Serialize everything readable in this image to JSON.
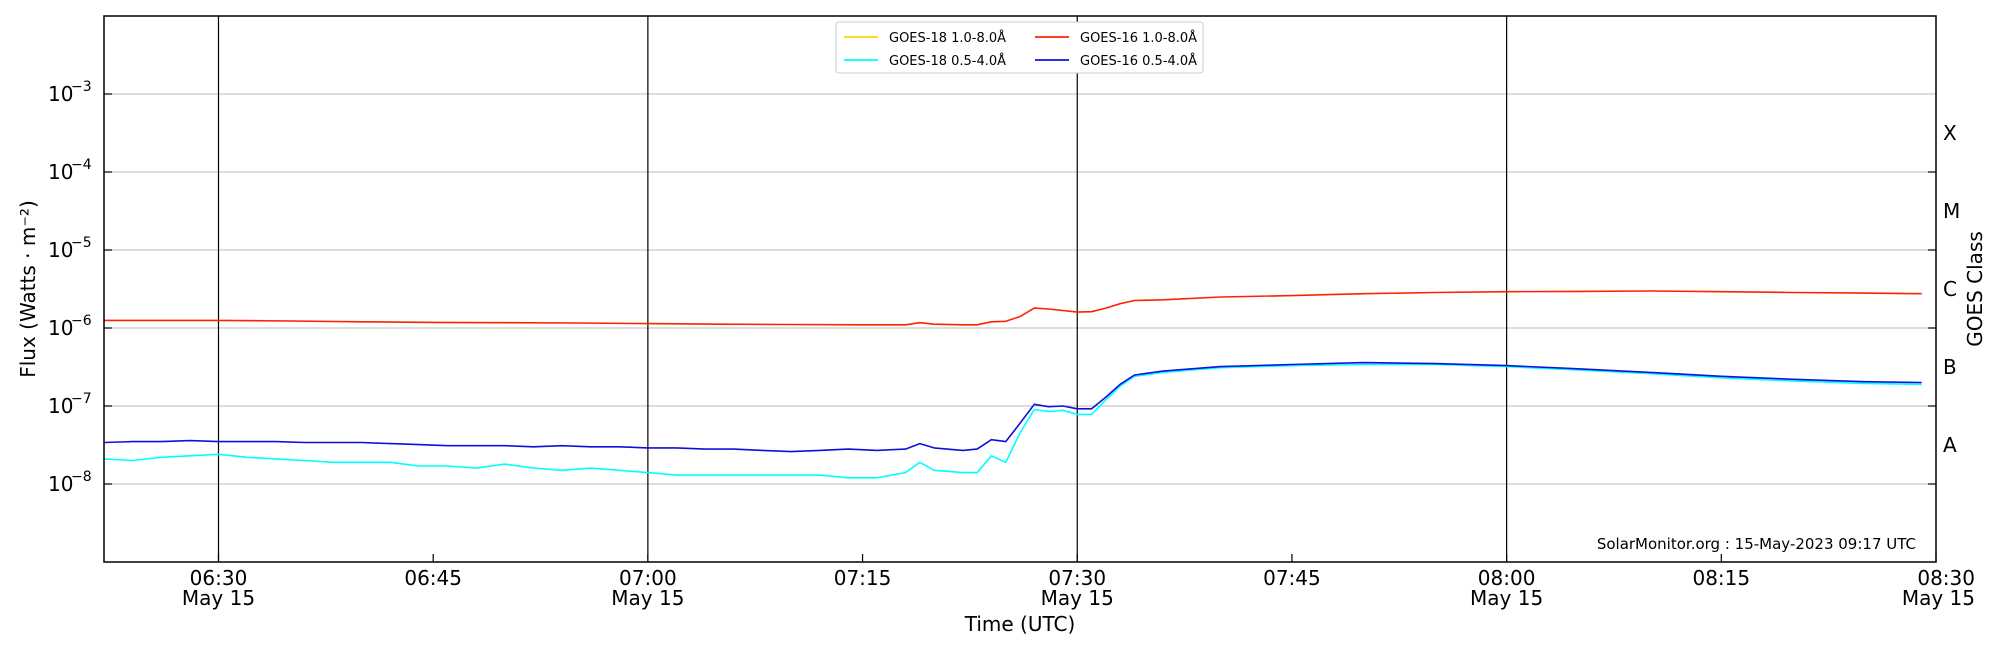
{
  "chart_data": {
    "type": "line",
    "xlabel": "Time (UTC)",
    "ylabel": "Flux (Watts · m⁻²)",
    "right_label": "GOES Class",
    "yscale": "log",
    "ylim": [
      1e-09,
      0.01
    ],
    "xlim": [
      "06:22",
      "08:30"
    ],
    "x_ticks": [
      {
        "t": "06:30",
        "label": "06:30",
        "sub": "May 15"
      },
      {
        "t": "06:45",
        "label": "06:45",
        "sub": ""
      },
      {
        "t": "07:00",
        "label": "07:00",
        "sub": "May 15"
      },
      {
        "t": "07:15",
        "label": "07:15",
        "sub": ""
      },
      {
        "t": "07:30",
        "label": "07:30",
        "sub": "May 15"
      },
      {
        "t": "07:45",
        "label": "07:45",
        "sub": ""
      },
      {
        "t": "08:00",
        "label": "08:00",
        "sub": "May 15"
      },
      {
        "t": "08:15",
        "label": "08:15",
        "sub": ""
      },
      {
        "t": "08:30",
        "label": "08:30",
        "sub": "May 15"
      }
    ],
    "vertical_lines": [
      "06:30",
      "07:00",
      "07:30",
      "08:00"
    ],
    "y_ticks": [
      {
        "value": 1e-08,
        "base": "10",
        "exp": "−8"
      },
      {
        "value": 1e-07,
        "base": "10",
        "exp": "−7"
      },
      {
        "value": 1e-06,
        "base": "10",
        "exp": "−6"
      },
      {
        "value": 1e-05,
        "base": "10",
        "exp": "−5"
      },
      {
        "value": 0.0001,
        "base": "10",
        "exp": "−4"
      },
      {
        "value": 0.001,
        "base": "10",
        "exp": "−3"
      }
    ],
    "grid_y": [
      1e-08,
      1e-07,
      1e-06,
      1e-05,
      0.0001,
      0.001
    ],
    "goes_classes": [
      {
        "label": "A",
        "value": 3.16e-08
      },
      {
        "label": "B",
        "value": 3.16e-07
      },
      {
        "label": "C",
        "value": 3.16e-06
      },
      {
        "label": "M",
        "value": 3.16e-05
      },
      {
        "label": "X",
        "value": 0.000316
      }
    ],
    "legend": [
      {
        "name": "GOES-18 1.0-8.0Å",
        "color": "#ffd700"
      },
      {
        "name": "GOES-18 0.5-4.0Å",
        "color": "#00ffff"
      },
      {
        "name": "GOES-16 1.0-8.0Å",
        "color": "#ff2200"
      },
      {
        "name": "GOES-16 0.5-4.0Å",
        "color": "#1010dd"
      }
    ],
    "series": [
      {
        "name": "GOES-18 0.5-4.0Å",
        "color": "#00ffff",
        "points": [
          [
            "06:22",
            2.1e-08
          ],
          [
            "06:24",
            2e-08
          ],
          [
            "06:26",
            2.2e-08
          ],
          [
            "06:28",
            2.3e-08
          ],
          [
            "06:30",
            2.4e-08
          ],
          [
            "06:32",
            2.2e-08
          ],
          [
            "06:34",
            2.1e-08
          ],
          [
            "06:36",
            2e-08
          ],
          [
            "06:38",
            1.9e-08
          ],
          [
            "06:40",
            1.9e-08
          ],
          [
            "06:42",
            1.9e-08
          ],
          [
            "06:44",
            1.7e-08
          ],
          [
            "06:46",
            1.7e-08
          ],
          [
            "06:48",
            1.6e-08
          ],
          [
            "06:50",
            1.8e-08
          ],
          [
            "06:52",
            1.6e-08
          ],
          [
            "06:54",
            1.5e-08
          ],
          [
            "06:56",
            1.6e-08
          ],
          [
            "06:58",
            1.5e-08
          ],
          [
            "07:00",
            1.4e-08
          ],
          [
            "07:02",
            1.3e-08
          ],
          [
            "07:04",
            1.3e-08
          ],
          [
            "07:06",
            1.3e-08
          ],
          [
            "07:08",
            1.3e-08
          ],
          [
            "07:10",
            1.3e-08
          ],
          [
            "07:12",
            1.3e-08
          ],
          [
            "07:14",
            1.2e-08
          ],
          [
            "07:16",
            1.2e-08
          ],
          [
            "07:18",
            1.4e-08
          ],
          [
            "07:19",
            1.9e-08
          ],
          [
            "07:20",
            1.5e-08
          ],
          [
            "07:22",
            1.4e-08
          ],
          [
            "07:23",
            1.4e-08
          ],
          [
            "07:24",
            2.3e-08
          ],
          [
            "07:25",
            1.9e-08
          ],
          [
            "07:26",
            4.5e-08
          ],
          [
            "07:27",
            9e-08
          ],
          [
            "07:28",
            8.5e-08
          ],
          [
            "07:29",
            8.8e-08
          ],
          [
            "07:30",
            7.8e-08
          ],
          [
            "07:31",
            7.8e-08
          ],
          [
            "07:32",
            1.2e-07
          ],
          [
            "07:33",
            1.8e-07
          ],
          [
            "07:34",
            2.4e-07
          ],
          [
            "07:36",
            2.7e-07
          ],
          [
            "07:38",
            2.9e-07
          ],
          [
            "07:40",
            3.1e-07
          ],
          [
            "07:45",
            3.3e-07
          ],
          [
            "07:50",
            3.4e-07
          ],
          [
            "07:55",
            3.4e-07
          ],
          [
            "08:00",
            3.2e-07
          ],
          [
            "08:05",
            2.9e-07
          ],
          [
            "08:10",
            2.6e-07
          ],
          [
            "08:15",
            2.3e-07
          ],
          [
            "08:20",
            2.1e-07
          ],
          [
            "08:25",
            1.95e-07
          ],
          [
            "08:29",
            1.9e-07
          ]
        ]
      },
      {
        "name": "GOES-16 0.5-4.0Å",
        "color": "#1010dd",
        "points": [
          [
            "06:22",
            3.4e-08
          ],
          [
            "06:24",
            3.5e-08
          ],
          [
            "06:26",
            3.5e-08
          ],
          [
            "06:28",
            3.6e-08
          ],
          [
            "06:30",
            3.5e-08
          ],
          [
            "06:32",
            3.5e-08
          ],
          [
            "06:34",
            3.5e-08
          ],
          [
            "06:36",
            3.4e-08
          ],
          [
            "06:38",
            3.4e-08
          ],
          [
            "06:40",
            3.4e-08
          ],
          [
            "06:42",
            3.3e-08
          ],
          [
            "06:44",
            3.2e-08
          ],
          [
            "06:46",
            3.1e-08
          ],
          [
            "06:48",
            3.1e-08
          ],
          [
            "06:50",
            3.1e-08
          ],
          [
            "06:52",
            3e-08
          ],
          [
            "06:54",
            3.1e-08
          ],
          [
            "06:56",
            3e-08
          ],
          [
            "06:58",
            3e-08
          ],
          [
            "07:00",
            2.9e-08
          ],
          [
            "07:02",
            2.9e-08
          ],
          [
            "07:04",
            2.8e-08
          ],
          [
            "07:06",
            2.8e-08
          ],
          [
            "07:08",
            2.7e-08
          ],
          [
            "07:10",
            2.6e-08
          ],
          [
            "07:12",
            2.7e-08
          ],
          [
            "07:14",
            2.8e-08
          ],
          [
            "07:16",
            2.7e-08
          ],
          [
            "07:18",
            2.8e-08
          ],
          [
            "07:19",
            3.3e-08
          ],
          [
            "07:20",
            2.9e-08
          ],
          [
            "07:22",
            2.7e-08
          ],
          [
            "07:23",
            2.8e-08
          ],
          [
            "07:24",
            3.7e-08
          ],
          [
            "07:25",
            3.5e-08
          ],
          [
            "07:26",
            6e-08
          ],
          [
            "07:27",
            1.05e-07
          ],
          [
            "07:28",
            9.8e-08
          ],
          [
            "07:29",
            1e-07
          ],
          [
            "07:30",
            9.2e-08
          ],
          [
            "07:31",
            9.2e-08
          ],
          [
            "07:32",
            1.3e-07
          ],
          [
            "07:33",
            1.9e-07
          ],
          [
            "07:34",
            2.5e-07
          ],
          [
            "07:36",
            2.8e-07
          ],
          [
            "07:38",
            3e-07
          ],
          [
            "07:40",
            3.2e-07
          ],
          [
            "07:45",
            3.4e-07
          ],
          [
            "07:50",
            3.6e-07
          ],
          [
            "07:55",
            3.5e-07
          ],
          [
            "08:00",
            3.3e-07
          ],
          [
            "08:05",
            3e-07
          ],
          [
            "08:10",
            2.7e-07
          ],
          [
            "08:15",
            2.4e-07
          ],
          [
            "08:20",
            2.2e-07
          ],
          [
            "08:25",
            2.05e-07
          ],
          [
            "08:29",
            2e-07
          ]
        ]
      },
      {
        "name": "GOES-16 1.0-8.0Å",
        "color": "#ff2200",
        "points": [
          [
            "06:22",
            1.25e-06
          ],
          [
            "06:26",
            1.25e-06
          ],
          [
            "06:30",
            1.25e-06
          ],
          [
            "06:35",
            1.23e-06
          ],
          [
            "06:40",
            1.2e-06
          ],
          [
            "06:45",
            1.18e-06
          ],
          [
            "06:50",
            1.17e-06
          ],
          [
            "06:55",
            1.16e-06
          ],
          [
            "07:00",
            1.14e-06
          ],
          [
            "07:05",
            1.12e-06
          ],
          [
            "07:10",
            1.11e-06
          ],
          [
            "07:15",
            1.1e-06
          ],
          [
            "07:18",
            1.1e-06
          ],
          [
            "07:19",
            1.17e-06
          ],
          [
            "07:20",
            1.12e-06
          ],
          [
            "07:22",
            1.1e-06
          ],
          [
            "07:23",
            1.1e-06
          ],
          [
            "07:24",
            1.2e-06
          ],
          [
            "07:25",
            1.22e-06
          ],
          [
            "07:26",
            1.4e-06
          ],
          [
            "07:27",
            1.8e-06
          ],
          [
            "07:28",
            1.75e-06
          ],
          [
            "07:30",
            1.6e-06
          ],
          [
            "07:31",
            1.62e-06
          ],
          [
            "07:32",
            1.8e-06
          ],
          [
            "07:33",
            2.05e-06
          ],
          [
            "07:34",
            2.25e-06
          ],
          [
            "07:36",
            2.3e-06
          ],
          [
            "07:40",
            2.5e-06
          ],
          [
            "07:45",
            2.6e-06
          ],
          [
            "07:50",
            2.75e-06
          ],
          [
            "07:55",
            2.85e-06
          ],
          [
            "08:00",
            2.92e-06
          ],
          [
            "08:05",
            2.95e-06
          ],
          [
            "08:10",
            2.98e-06
          ],
          [
            "08:15",
            2.92e-06
          ],
          [
            "08:20",
            2.85e-06
          ],
          [
            "08:25",
            2.8e-06
          ],
          [
            "08:29",
            2.75e-06
          ]
        ]
      }
    ]
  },
  "footer_text": "SolarMonitor.org : 15-May-2023 09:17 UTC"
}
